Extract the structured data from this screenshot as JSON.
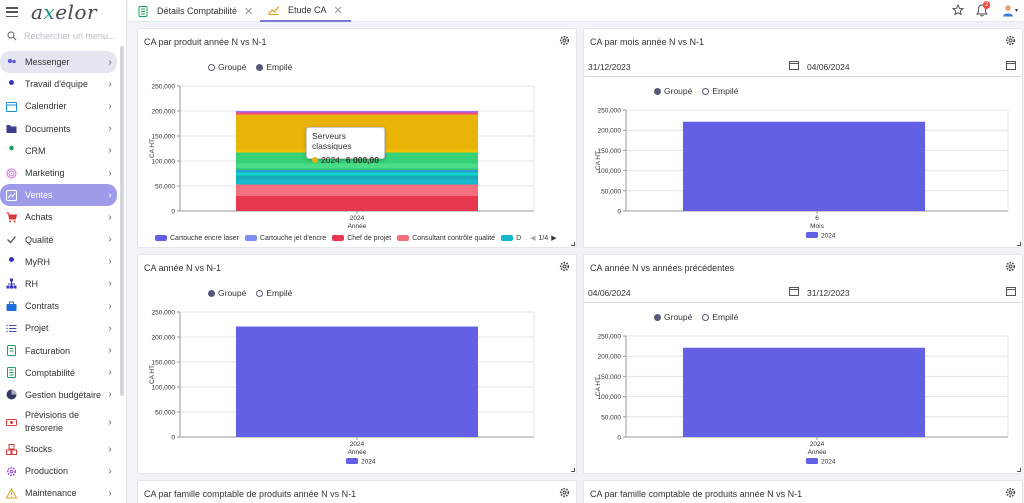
{
  "app": {
    "logo_a": "a",
    "logo_x": "x",
    "logo_rest": "elor"
  },
  "search": {
    "placeholder": "Rechercher un menu..."
  },
  "menu": [
    {
      "label": "Messenger",
      "icon": "users-icon",
      "color": "#5f5bd9",
      "state": "hover"
    },
    {
      "label": "Travail d'équipe",
      "icon": "user-icon",
      "color": "#3a34b8"
    },
    {
      "label": "Calendrier",
      "icon": "calendar-icon",
      "color": "#1a8fd8"
    },
    {
      "label": "Documents",
      "icon": "folder-icon",
      "color": "#3a3f8f"
    },
    {
      "label": "CRM",
      "icon": "person-icon",
      "color": "#1aa060"
    },
    {
      "label": "Marketing",
      "icon": "target-icon",
      "color": "#d86ad8"
    },
    {
      "label": "Ventes",
      "icon": "chart-line-icon",
      "color": "#ffffff",
      "state": "active"
    },
    {
      "label": "Achats",
      "icon": "cart-icon",
      "color": "#d43b3b"
    },
    {
      "label": "Qualité",
      "icon": "check-icon",
      "color": "#555555"
    },
    {
      "label": "MyRH",
      "icon": "person-badge-icon",
      "color": "#3a34b8"
    },
    {
      "label": "RH",
      "icon": "org-chart-icon",
      "color": "#3a34b8"
    },
    {
      "label": "Contrats",
      "icon": "briefcase-icon",
      "color": "#1a6fd8"
    },
    {
      "label": "Projet",
      "icon": "list-icon",
      "color": "#4a4fb0"
    },
    {
      "label": "Facturation",
      "icon": "invoice-icon",
      "color": "#1aa060"
    },
    {
      "label": "Comptabilité",
      "icon": "ledger-icon",
      "color": "#1aa060"
    },
    {
      "label": "Gestion budgétaire",
      "icon": "pie-icon",
      "color": "#333a66"
    },
    {
      "label": "Prévisions de trésorerie",
      "icon": "cash-icon",
      "color": "#d43b3b"
    },
    {
      "label": "Stocks",
      "icon": "boxes-icon",
      "color": "#d43b3b"
    },
    {
      "label": "Production",
      "icon": "gear-icon",
      "color": "#9c4ad8"
    },
    {
      "label": "Maintenance",
      "icon": "warning-icon",
      "color": "#d8a21a"
    }
  ],
  "tabs": [
    {
      "label": "Détails Comptabilité",
      "icon": "ledger-icon"
    },
    {
      "label": "Etude CA",
      "icon": "chart-line-icon"
    }
  ],
  "topbar": {
    "notif_count": "2"
  },
  "panels": {
    "p1": {
      "title": "CA par produit année N vs N-1",
      "opt1": "Groupé",
      "opt2": "Empilé"
    },
    "p2": {
      "title": "CA par mois année N vs N-1",
      "date_from": "31/12/2023",
      "date_to": "04/06/2024",
      "opt1": "Groupé",
      "opt2": "Empilé"
    },
    "p3": {
      "title": "CA année N vs N-1",
      "opt1": "Groupé",
      "opt2": "Empilé"
    },
    "p4": {
      "title": "CA année N vs années précédentes",
      "date_from": "04/06/2024",
      "date_to": "31/12/2023",
      "opt1": "Groupé",
      "opt2": "Empilé"
    },
    "p5": {
      "title": "CA par famille comptable de produits année N vs N-1"
    },
    "p6": {
      "title": "CA par famille comptable de produits année N vs N-1"
    }
  },
  "tooltip": {
    "title": "Serveurs classiques",
    "series": "2024",
    "value": "6 000,00"
  },
  "legend": {
    "items": [
      {
        "label": "Cartouche encre laser",
        "color": "#6360e3"
      },
      {
        "label": "Cartouche jet d'encre",
        "color": "#7f8df5"
      },
      {
        "label": "Chef de projet",
        "color": "#e8384f"
      },
      {
        "label": "Consultant contrôle qualité",
        "color": "#f3707d"
      },
      {
        "label": "D",
        "color": "#15b8cf"
      }
    ],
    "page": "1/4"
  },
  "chart_data": [
    {
      "type": "bar",
      "title": "CA par produit année N vs N-1",
      "stacked": true,
      "categories": [
        "2024"
      ],
      "xlabel": "Année",
      "ylabel": "CA HT",
      "ylim": [
        0,
        250000
      ],
      "yticks": [
        "0",
        "50,000",
        "100,000",
        "150,000",
        "200,000",
        "250,000"
      ],
      "series": [
        {
          "values": [
            30000
          ],
          "color": "#e8384f"
        },
        {
          "values": [
            23000
          ],
          "color": "#f3707d"
        },
        {
          "values": [
            10000
          ],
          "color": "#15b8cf"
        },
        {
          "values": [
            8000
          ],
          "color": "#1aa8b8"
        },
        {
          "values": [
            6000
          ],
          "color": "#0fd6c6"
        },
        {
          "values": [
            5000
          ],
          "color": "#2a9fd6"
        },
        {
          "values": [
            3000
          ],
          "color": "#34c47a"
        },
        {
          "values": [
            10000
          ],
          "color": "#4bdc86"
        },
        {
          "values": [
            22000
          ],
          "color": "#36d178"
        },
        {
          "values": [
            6000
          ],
          "color": "#f2c200"
        },
        {
          "values": [
            70000
          ],
          "color": "#eab308"
        },
        {
          "values": [
            4000
          ],
          "color": "#ef4f88"
        },
        {
          "values": [
            2000
          ],
          "color": "#b45cf0"
        },
        {
          "values": [
            1000
          ],
          "color": "#7f8df5"
        }
      ]
    },
    {
      "type": "bar",
      "title": "CA par mois année N vs N-1",
      "categories": [
        "6"
      ],
      "xlabel": "Mois",
      "ylabel": "CA HT",
      "ylim": [
        0,
        250000
      ],
      "yticks": [
        "0",
        "50,000",
        "100,000",
        "150,000",
        "200,000",
        "250,000"
      ],
      "series": [
        {
          "name": "2024",
          "values": [
            221000
          ],
          "color": "#6360e3"
        }
      ]
    },
    {
      "type": "bar",
      "title": "CA année N vs N-1",
      "categories": [
        "2024"
      ],
      "xlabel": "Année",
      "ylabel": "CA HT",
      "ylim": [
        0,
        250000
      ],
      "yticks": [
        "0",
        "50,000",
        "100,000",
        "150,000",
        "200,000",
        "250,000"
      ],
      "series": [
        {
          "name": "2024",
          "values": [
            221000
          ],
          "color": "#6360e3"
        }
      ]
    },
    {
      "type": "bar",
      "title": "CA année N vs années précédentes",
      "categories": [
        "2024"
      ],
      "xlabel": "Année",
      "ylabel": "CA HT",
      "ylim": [
        0,
        250000
      ],
      "yticks": [
        "0",
        "50,000",
        "100,000",
        "150,000",
        "200,000",
        "250,000"
      ],
      "series": [
        {
          "name": "2024",
          "values": [
            221000
          ],
          "color": "#6360e3"
        }
      ]
    }
  ]
}
